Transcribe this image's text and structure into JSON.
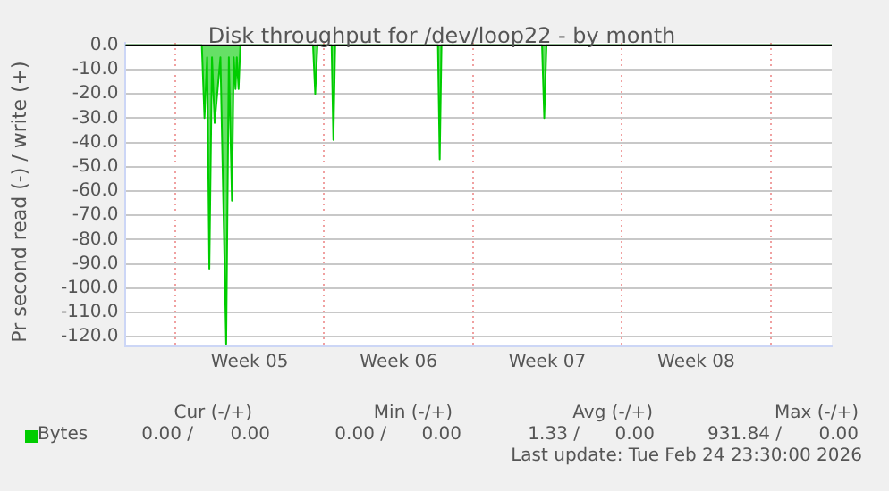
{
  "chart_data": {
    "type": "area",
    "title": "Disk throughput for /dev/loop22 - by month",
    "ylabel": "Pr second read (-) / write (+)",
    "x": [
      "2026-01-23T16:00",
      "2026-01-27T06:00",
      "2026-01-27T09:00",
      "2026-01-27T12:00",
      "2026-01-27T14:30",
      "2026-01-27T17:30",
      "2026-01-27T20:30",
      "2026-01-28T03:00",
      "2026-01-28T09:30",
      "2026-01-28T12:30",
      "2026-01-28T16:00",
      "2026-01-28T18:00",
      "2026-01-28T20:00",
      "2026-01-28T21:30",
      "2026-01-28T23:30",
      "2026-01-29T01:30",
      "2026-02-01T11:30",
      "2026-02-01T14:00",
      "2026-02-01T16:30",
      "2026-02-02T08:30",
      "2026-02-02T10:30",
      "2026-02-02T12:30",
      "2026-02-07T08:30",
      "2026-02-07T10:30",
      "2026-02-07T12:30",
      "2026-02-12T06:00",
      "2026-02-12T08:30",
      "2026-02-12T11:00",
      "2026-02-25T21:00"
    ],
    "series": [
      {
        "name": "Bytes",
        "color": "#00cc00",
        "values": [
          0,
          0,
          -30,
          -5,
          -92,
          -5,
          -32,
          -5,
          -123,
          -5,
          -64,
          -5,
          -18,
          -5,
          -18,
          0,
          0,
          -20,
          0,
          0,
          -39,
          0,
          0,
          -47,
          0,
          0,
          -30,
          0,
          0
        ]
      }
    ],
    "xlim": [
      "2026-01-23T16:00",
      "2026-02-25T21:00"
    ],
    "xticks": [
      {
        "value": "2026-01-26",
        "label": null
      },
      {
        "value": "2026-01-29T12:00",
        "label": "Week 05"
      },
      {
        "value": "2026-02-02",
        "label": null
      },
      {
        "value": "2026-02-05T12:00",
        "label": "Week 06"
      },
      {
        "value": "2026-02-09",
        "label": null
      },
      {
        "value": "2026-02-12T12:00",
        "label": "Week 07"
      },
      {
        "value": "2026-02-16",
        "label": null
      },
      {
        "value": "2026-02-19T12:00",
        "label": "Week 08"
      },
      {
        "value": "2026-02-23",
        "label": null
      }
    ],
    "ylim": [
      -124,
      1
    ],
    "yticks": [
      {
        "value": 0,
        "label": "0.0"
      },
      {
        "value": -10,
        "label": "-10.0"
      },
      {
        "value": -20,
        "label": "-20.0"
      },
      {
        "value": -30,
        "label": "-30.0"
      },
      {
        "value": -40,
        "label": "-40.0"
      },
      {
        "value": -50,
        "label": "-50.0"
      },
      {
        "value": -60,
        "label": "-60.0"
      },
      {
        "value": -70,
        "label": "-70.0"
      },
      {
        "value": -80,
        "label": "-80.0"
      },
      {
        "value": -90,
        "label": "-90.0"
      },
      {
        "value": -100,
        "label": "-100.0"
      },
      {
        "value": -110,
        "label": "-110.0"
      },
      {
        "value": -120,
        "label": "-120.0"
      }
    ],
    "ref_lines": [
      {
        "axis": "y",
        "value": 0,
        "color": "#000000"
      }
    ],
    "grid": true,
    "legend": "bottom left",
    "annotations": [
      "Cur (-/+)",
      "Min (-/+)",
      "Avg (-/+)",
      "Max (-/+)",
      "0.00 /",
      "0.00",
      "0.00 /",
      "0.00",
      "1.33 /",
      "0.00",
      "931.84 /",
      "0.00",
      "Last update: Tue Feb 24 23:30:00 2026"
    ]
  }
}
